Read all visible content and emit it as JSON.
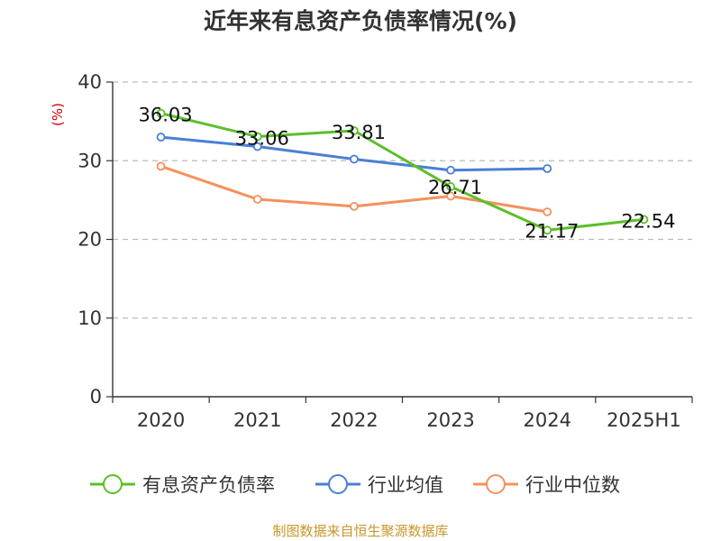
{
  "chart_data": {
    "type": "line",
    "title": "近年来有息资产负债率情况(%)",
    "unit_label": "(%)",
    "categories": [
      "2020",
      "2021",
      "2022",
      "2023",
      "2024",
      "2025H1"
    ],
    "ylim": [
      0,
      40
    ],
    "yticks": [
      0,
      10,
      20,
      30,
      40
    ],
    "grid": true,
    "legend_position": "bottom",
    "series": [
      {
        "name": "有息资产负债率",
        "color": "#5cbf2a",
        "values": [
          36.03,
          33.06,
          33.81,
          26.71,
          21.17,
          22.54
        ],
        "labels": [
          "36.03",
          "33.06",
          "33.81",
          "26.71",
          "21.17",
          "22.54"
        ]
      },
      {
        "name": "行业均值",
        "color": "#4a7fd4",
        "values": [
          33.0,
          31.8,
          30.2,
          28.8,
          29.0,
          null
        ]
      },
      {
        "name": "行业中位数",
        "color": "#f4915c",
        "values": [
          29.3,
          25.1,
          24.2,
          25.5,
          23.5,
          null
        ]
      }
    ],
    "source": "制图数据来自恒生聚源数据库"
  }
}
